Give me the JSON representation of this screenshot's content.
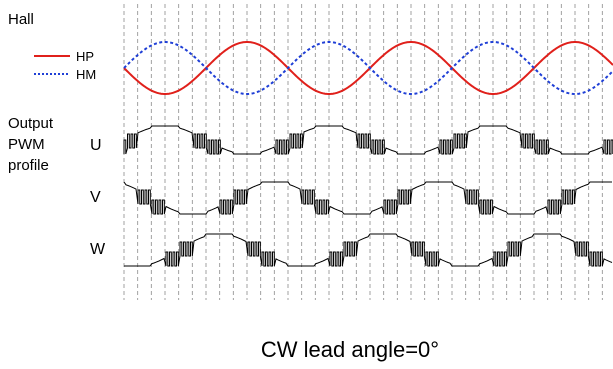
{
  "labels": {
    "hall": "Hall",
    "output_line1": "Output",
    "output_line2": "PWM",
    "output_line3": "profile",
    "phase_u": "U",
    "phase_v": "V",
    "phase_w": "W",
    "caption": "CW lead angle=0°"
  },
  "legend": [
    {
      "name": "HP",
      "color": "#e0201b",
      "style": "solid"
    },
    {
      "name": "HM",
      "color": "#1f3fd6",
      "style": "dotted"
    }
  ],
  "colors": {
    "hp": "#e0201b",
    "hm": "#1f3fd6",
    "pwm": "#000000",
    "grid": "#8a8a8a"
  }
}
